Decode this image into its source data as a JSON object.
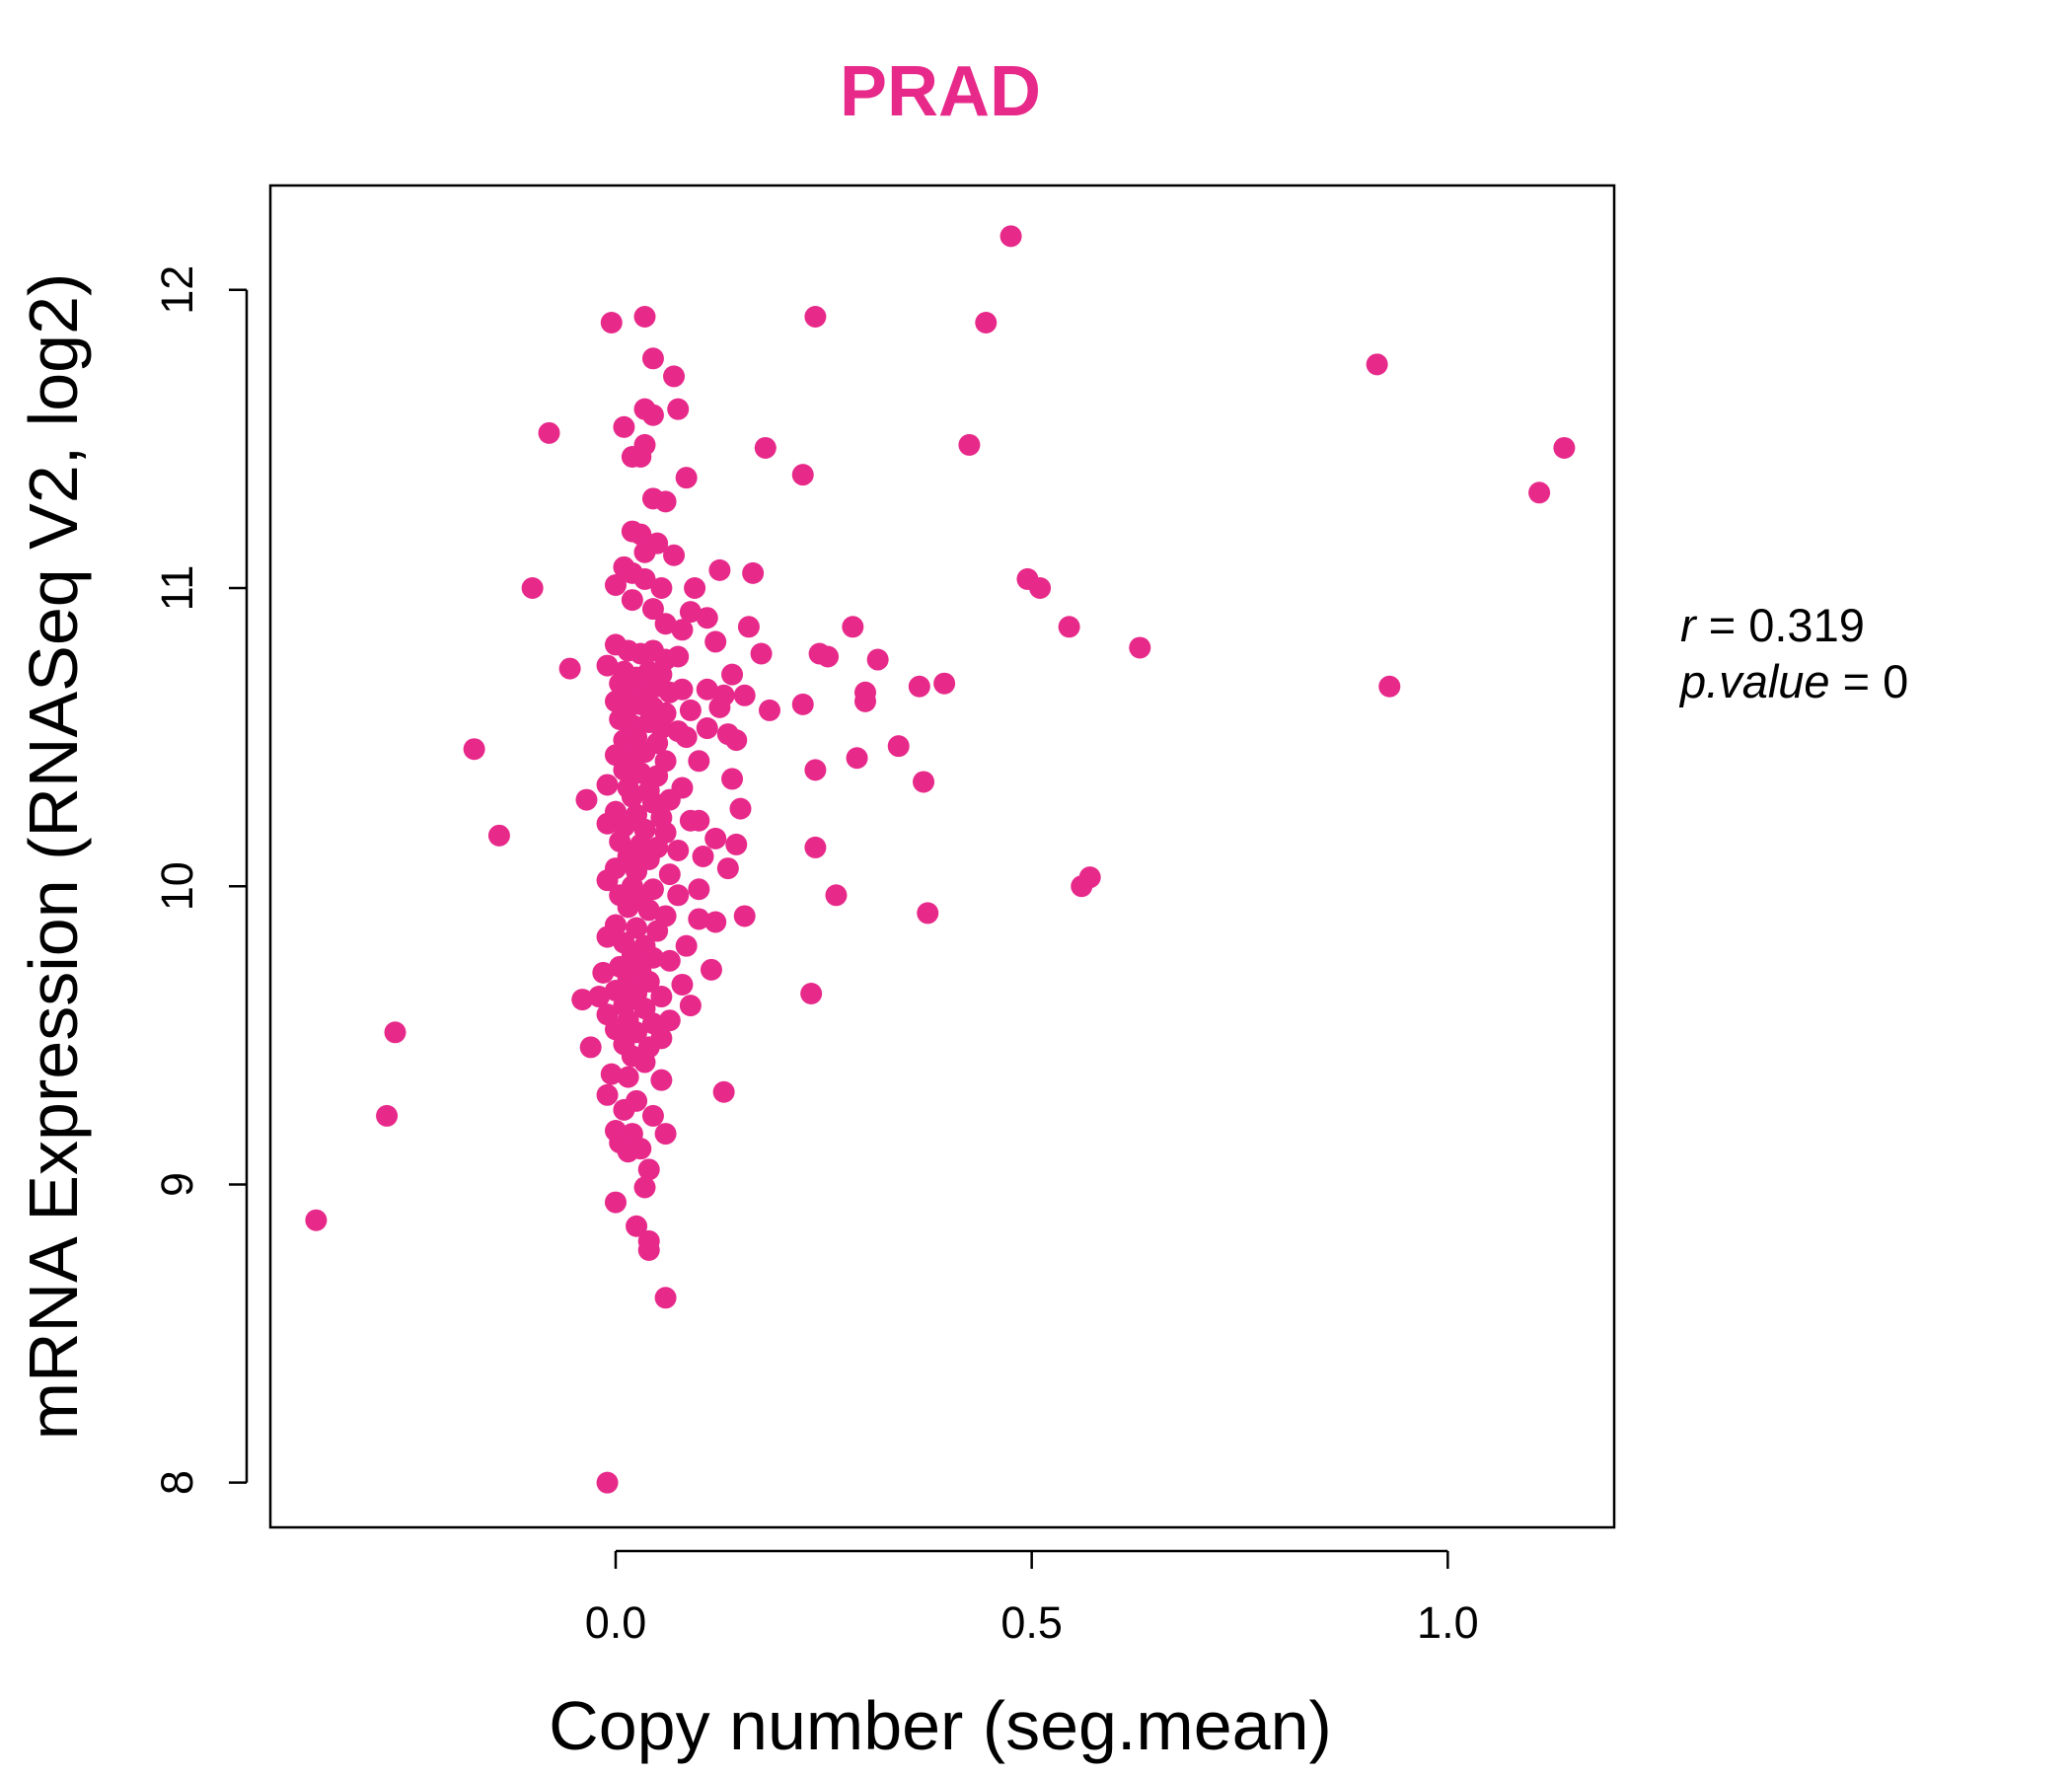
{
  "chart_data": {
    "type": "scatter",
    "title": "PRAD",
    "xlabel": "Copy number (seg.mean)",
    "ylabel": "mRNA Expression (RNASeq V2, log2)",
    "xlim": [
      -0.415,
      1.2
    ],
    "ylim": [
      7.85,
      12.35
    ],
    "xticks": [
      0.0,
      0.5,
      1.0
    ],
    "xtick_labels": [
      "0.0",
      "0.5",
      "1.0"
    ],
    "yticks": [
      8,
      9,
      10,
      11,
      12
    ],
    "ytick_labels": [
      "8",
      "9",
      "10",
      "11",
      "12"
    ],
    "grid": false,
    "colors": {
      "accent": "#E7298A",
      "axis": "#000000"
    },
    "stats": {
      "r_label": "r",
      "r_value": "0.319",
      "p_label": "p.value",
      "p_value": "0"
    },
    "points": [
      [
        0.475,
        12.18
      ],
      [
        -0.005,
        11.89
      ],
      [
        0.035,
        11.91
      ],
      [
        0.24,
        11.91
      ],
      [
        0.445,
        11.89
      ],
      [
        0.045,
        11.77
      ],
      [
        0.07,
        11.71
      ],
      [
        0.915,
        11.75
      ],
      [
        0.035,
        11.6
      ],
      [
        0.045,
        11.58
      ],
      [
        0.075,
        11.6
      ],
      [
        0.01,
        11.54
      ],
      [
        -0.08,
        11.52
      ],
      [
        0.035,
        11.48
      ],
      [
        0.02,
        11.44
      ],
      [
        0.03,
        11.44
      ],
      [
        0.18,
        11.47
      ],
      [
        0.425,
        11.48
      ],
      [
        1.14,
        11.47
      ],
      [
        0.085,
        11.37
      ],
      [
        0.225,
        11.38
      ],
      [
        0.045,
        11.3
      ],
      [
        0.06,
        11.29
      ],
      [
        1.11,
        11.32
      ],
      [
        0.02,
        11.19
      ],
      [
        0.03,
        11.18
      ],
      [
        0.05,
        11.15
      ],
      [
        0.035,
        11.12
      ],
      [
        0.07,
        11.11
      ],
      [
        0.01,
        11.07
      ],
      [
        0.02,
        11.05
      ],
      [
        0.035,
        11.03
      ],
      [
        0.0,
        11.01
      ],
      [
        0.055,
        11.0
      ],
      [
        0.095,
        11.0
      ],
      [
        -0.1,
        11.0
      ],
      [
        0.125,
        11.06
      ],
      [
        0.165,
        11.05
      ],
      [
        0.495,
        11.03
      ],
      [
        0.51,
        11.0
      ],
      [
        0.02,
        10.96
      ],
      [
        0.045,
        10.93
      ],
      [
        0.09,
        10.92
      ],
      [
        0.11,
        10.9
      ],
      [
        0.06,
        10.88
      ],
      [
        0.08,
        10.86
      ],
      [
        0.16,
        10.87
      ],
      [
        0.285,
        10.87
      ],
      [
        0.545,
        10.87
      ],
      [
        0.0,
        10.81
      ],
      [
        0.015,
        10.79
      ],
      [
        0.03,
        10.78
      ],
      [
        0.045,
        10.79
      ],
      [
        0.06,
        10.76
      ],
      [
        0.075,
        10.77
      ],
      [
        0.12,
        10.82
      ],
      [
        0.175,
        10.78
      ],
      [
        0.245,
        10.78
      ],
      [
        0.255,
        10.77
      ],
      [
        0.315,
        10.76
      ],
      [
        0.63,
        10.8
      ],
      [
        -0.055,
        10.73
      ],
      [
        -0.01,
        10.74
      ],
      [
        0.01,
        10.72
      ],
      [
        0.025,
        10.7
      ],
      [
        0.04,
        10.72
      ],
      [
        0.055,
        10.71
      ],
      [
        0.14,
        10.71
      ],
      [
        0.005,
        10.68
      ],
      [
        0.02,
        10.66
      ],
      [
        0.035,
        10.65
      ],
      [
        0.05,
        10.67
      ],
      [
        0.065,
        10.65
      ],
      [
        0.08,
        10.66
      ],
      [
        0.11,
        10.66
      ],
      [
        0.13,
        10.64
      ],
      [
        0.155,
        10.64
      ],
      [
        0.3,
        10.65
      ],
      [
        0.365,
        10.67
      ],
      [
        0.395,
        10.68
      ],
      [
        0.93,
        10.67
      ],
      [
        0.0,
        10.62
      ],
      [
        0.015,
        10.6
      ],
      [
        0.03,
        10.61
      ],
      [
        0.045,
        10.6
      ],
      [
        0.06,
        10.58
      ],
      [
        0.09,
        10.59
      ],
      [
        0.125,
        10.6
      ],
      [
        0.185,
        10.59
      ],
      [
        0.225,
        10.61
      ],
      [
        0.3,
        10.62
      ],
      [
        0.005,
        10.56
      ],
      [
        0.02,
        10.54
      ],
      [
        0.04,
        10.55
      ],
      [
        0.055,
        10.53
      ],
      [
        0.075,
        10.52
      ],
      [
        0.11,
        10.53
      ],
      [
        0.135,
        10.51
      ],
      [
        0.01,
        10.49
      ],
      [
        0.025,
        10.5
      ],
      [
        0.05,
        10.48
      ],
      [
        0.085,
        10.5
      ],
      [
        0.145,
        10.49
      ],
      [
        -0.17,
        10.46
      ],
      [
        0.34,
        10.47
      ],
      [
        0.0,
        10.44
      ],
      [
        0.02,
        10.43
      ],
      [
        0.035,
        10.45
      ],
      [
        0.06,
        10.42
      ],
      [
        0.1,
        10.42
      ],
      [
        0.29,
        10.43
      ],
      [
        0.01,
        10.39
      ],
      [
        0.03,
        10.38
      ],
      [
        0.05,
        10.37
      ],
      [
        0.14,
        10.36
      ],
      [
        0.24,
        10.39
      ],
      [
        0.37,
        10.35
      ],
      [
        -0.01,
        10.34
      ],
      [
        0.015,
        10.33
      ],
      [
        0.04,
        10.32
      ],
      [
        0.08,
        10.33
      ],
      [
        0.02,
        10.3
      ],
      [
        0.045,
        10.28
      ],
      [
        0.065,
        10.29
      ],
      [
        -0.035,
        10.29
      ],
      [
        0.15,
        10.26
      ],
      [
        0.0,
        10.25
      ],
      [
        0.025,
        10.24
      ],
      [
        0.055,
        10.23
      ],
      [
        0.09,
        10.22
      ],
      [
        0.1,
        10.22
      ],
      [
        -0.01,
        10.21
      ],
      [
        0.01,
        10.2
      ],
      [
        0.035,
        10.19
      ],
      [
        0.06,
        10.18
      ],
      [
        0.12,
        10.16
      ],
      [
        0.145,
        10.14
      ],
      [
        -0.14,
        10.17
      ],
      [
        0.005,
        10.15
      ],
      [
        0.03,
        10.14
      ],
      [
        0.05,
        10.13
      ],
      [
        0.075,
        10.12
      ],
      [
        0.24,
        10.13
      ],
      [
        0.015,
        10.1
      ],
      [
        0.04,
        10.09
      ],
      [
        0.105,
        10.1
      ],
      [
        0.0,
        10.06
      ],
      [
        0.025,
        10.05
      ],
      [
        0.065,
        10.04
      ],
      [
        0.135,
        10.06
      ],
      [
        0.57,
        10.03
      ],
      [
        -0.01,
        10.02
      ],
      [
        0.02,
        10.0
      ],
      [
        0.045,
        9.99
      ],
      [
        0.1,
        9.99
      ],
      [
        0.56,
        10.0
      ],
      [
        0.005,
        9.97
      ],
      [
        0.03,
        9.96
      ],
      [
        0.075,
        9.97
      ],
      [
        0.265,
        9.97
      ],
      [
        0.015,
        9.93
      ],
      [
        0.04,
        9.92
      ],
      [
        0.06,
        9.9
      ],
      [
        0.1,
        9.89
      ],
      [
        0.12,
        9.88
      ],
      [
        0.155,
        9.9
      ],
      [
        0.375,
        9.91
      ],
      [
        0.0,
        9.87
      ],
      [
        0.025,
        9.86
      ],
      [
        0.05,
        9.85
      ],
      [
        -0.01,
        9.83
      ],
      [
        0.01,
        9.81
      ],
      [
        0.035,
        9.8
      ],
      [
        0.085,
        9.8
      ],
      [
        0.02,
        9.77
      ],
      [
        0.045,
        9.76
      ],
      [
        0.065,
        9.75
      ],
      [
        0.005,
        9.73
      ],
      [
        0.03,
        9.72
      ],
      [
        0.115,
        9.72
      ],
      [
        -0.015,
        9.71
      ],
      [
        0.015,
        9.69
      ],
      [
        0.04,
        9.68
      ],
      [
        0.08,
        9.67
      ],
      [
        0.0,
        9.65
      ],
      [
        0.025,
        9.64
      ],
      [
        0.055,
        9.63
      ],
      [
        -0.04,
        9.62
      ],
      [
        -0.02,
        9.63
      ],
      [
        0.01,
        9.6
      ],
      [
        0.035,
        9.59
      ],
      [
        0.09,
        9.6
      ],
      [
        0.235,
        9.64
      ],
      [
        -0.01,
        9.57
      ],
      [
        0.015,
        9.55
      ],
      [
        0.045,
        9.54
      ],
      [
        0.065,
        9.55
      ],
      [
        0.0,
        9.52
      ],
      [
        0.025,
        9.51
      ],
      [
        0.055,
        9.49
      ],
      [
        -0.265,
        9.51
      ],
      [
        0.01,
        9.47
      ],
      [
        0.04,
        9.46
      ],
      [
        -0.03,
        9.46
      ],
      [
        0.02,
        9.43
      ],
      [
        0.035,
        9.41
      ],
      [
        -0.005,
        9.37
      ],
      [
        0.015,
        9.36
      ],
      [
        0.055,
        9.35
      ],
      [
        0.13,
        9.31
      ],
      [
        -0.01,
        9.3
      ],
      [
        0.025,
        9.28
      ],
      [
        0.01,
        9.25
      ],
      [
        0.045,
        9.23
      ],
      [
        -0.275,
        9.23
      ],
      [
        0.0,
        9.18
      ],
      [
        0.02,
        9.17
      ],
      [
        0.06,
        9.17
      ],
      [
        0.005,
        9.14
      ],
      [
        0.03,
        9.12
      ],
      [
        0.015,
        9.11
      ],
      [
        0.04,
        9.05
      ],
      [
        0.035,
        8.99
      ],
      [
        0.0,
        8.94
      ],
      [
        0.025,
        8.86
      ],
      [
        0.04,
        8.81
      ],
      [
        0.04,
        8.78
      ],
      [
        0.06,
        8.62
      ],
      [
        -0.36,
        8.88
      ],
      [
        -0.01,
        8.0
      ]
    ]
  }
}
